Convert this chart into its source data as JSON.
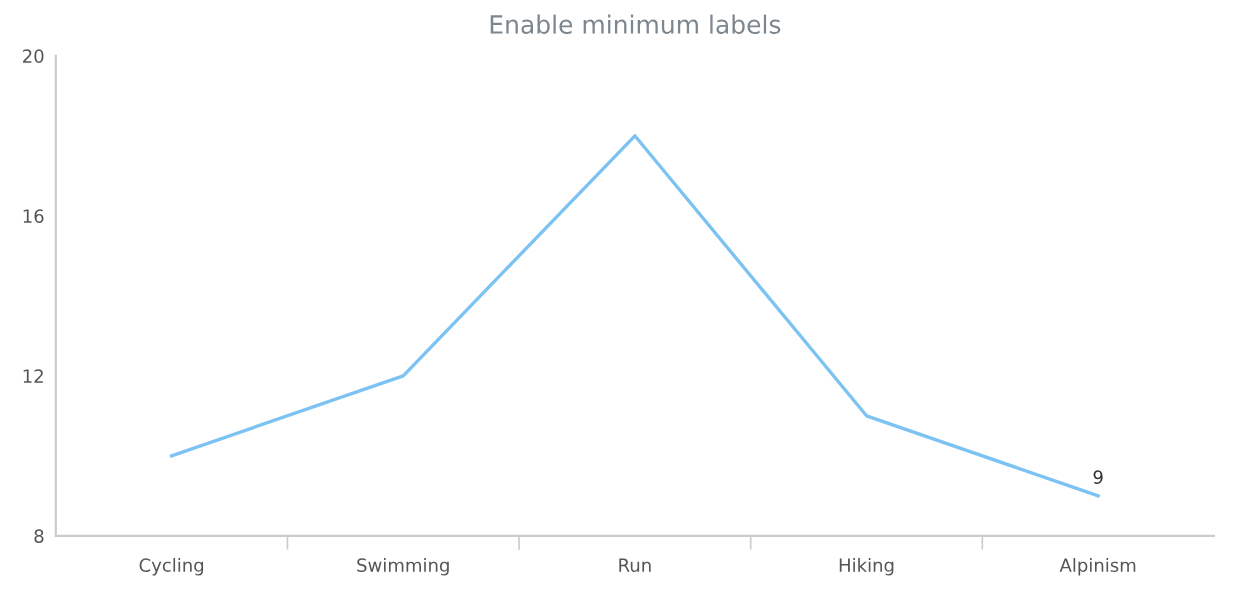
{
  "chart_data": {
    "type": "line",
    "title": "Enable minimum labels",
    "categories": [
      "Cycling",
      "Swimming",
      "Run",
      "Hiking",
      "Alpinism"
    ],
    "series": [
      {
        "color": "#7cc3f3",
        "values": [
          10,
          12,
          18,
          11,
          9
        ],
        "value_labels": [
          null,
          null,
          null,
          null,
          "9"
        ]
      }
    ],
    "ylim": [
      8,
      20
    ],
    "yticks": [
      8,
      12,
      16,
      20
    ],
    "grid": false,
    "marker": "none",
    "line_style": "solid"
  }
}
